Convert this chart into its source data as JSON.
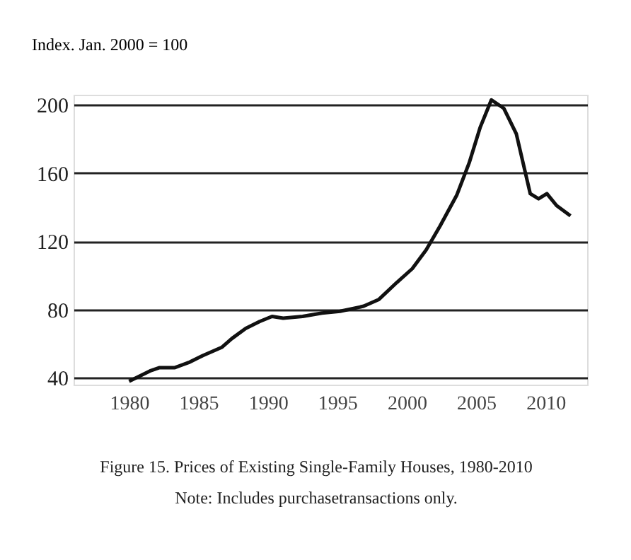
{
  "chart_data": {
    "type": "line",
    "ylabel": "Index. Jan. 2000 = 100",
    "annotations": [
      "Figure 15. Prices of Existing Single-Family Houses, 1980-2010",
      "Note: Includes purchasetransactions only."
    ],
    "x": [
      1980,
      1981.5,
      1982.2,
      1983.3,
      1984.3,
      1985.3,
      1986.7,
      1987.4,
      1988.4,
      1989.4,
      1990.3,
      1991.1,
      1992.5,
      1993.9,
      1995.2,
      1996.9,
      1998,
      1999.3,
      2000.4,
      2001.4,
      2002.4,
      2003.6,
      2004.5,
      2005.3,
      2006.1,
      2007,
      2007.9,
      2008.9,
      2009.5,
      2010.1,
      2010.8,
      2011.8
    ],
    "series": [
      {
        "color": "#111111",
        "values": [
          38,
          44,
          46,
          46,
          49,
          53,
          58,
          63,
          69,
          73,
          76,
          75,
          76,
          78,
          79,
          82,
          86,
          96,
          104,
          115,
          129,
          147,
          166,
          187,
          203,
          198,
          183,
          148,
          145,
          148,
          141,
          135
        ]
      }
    ],
    "xlim": [
      1976,
      2013
    ],
    "xticks": [
      1980,
      1985,
      1990,
      1995,
      2000,
      2005,
      2010
    ],
    "ylim": [
      36,
      206
    ],
    "yticks": [
      40,
      80,
      120,
      160,
      200
    ],
    "grid": "y",
    "line_style": "solid",
    "marker": "none"
  }
}
